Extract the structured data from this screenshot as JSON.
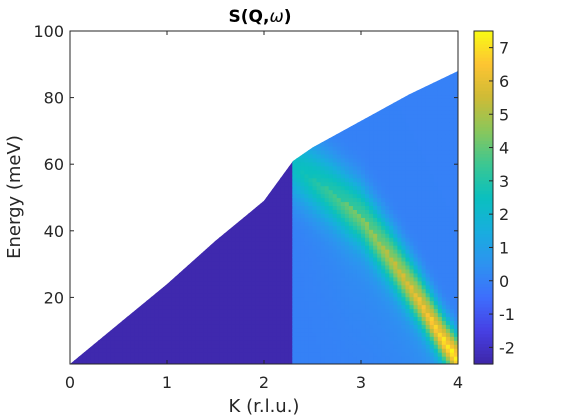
{
  "chart_data": {
    "type": "heatmap",
    "title": "S(Q,",
    "title_symbol": "ω",
    "title_close": ")",
    "xlabel": "K (r.l.u.)",
    "ylabel": "Energy (meV)",
    "xlim": [
      0,
      4
    ],
    "ylim": [
      0,
      100
    ],
    "xticks": [
      0,
      1,
      2,
      3,
      4
    ],
    "yticks": [
      20,
      40,
      60,
      80,
      100
    ],
    "colorbar": {
      "colormap": "parula",
      "range": [
        -2.5,
        7.5
      ],
      "ticks": [
        -2,
        -1,
        0,
        1,
        2,
        3,
        4,
        5,
        6,
        7
      ]
    },
    "kinematic_limit": {
      "description": "upper energy boundary of measured region",
      "points": [
        [
          0,
          0
        ],
        [
          0.5,
          12
        ],
        [
          1,
          24
        ],
        [
          1.5,
          37
        ],
        [
          2,
          49
        ],
        [
          2.3,
          61
        ],
        [
          2.5,
          65
        ],
        [
          3,
          73
        ],
        [
          3.5,
          81
        ],
        [
          4,
          88
        ]
      ]
    },
    "data_cutoff_K": 2.3,
    "dispersion_branch": {
      "description": "intense mode ridge",
      "points": [
        [
          2.3,
          60
        ],
        [
          2.7,
          52
        ],
        [
          3.0,
          45
        ],
        [
          3.3,
          33
        ],
        [
          3.6,
          20
        ],
        [
          3.85,
          8
        ],
        [
          4.0,
          2
        ]
      ],
      "peak_intensity_low": 6.8,
      "peak_intensity_high": 2.3
    },
    "background_level": -2.4
  },
  "colors": {
    "background": "#ffffff",
    "axis": "#262626"
  }
}
